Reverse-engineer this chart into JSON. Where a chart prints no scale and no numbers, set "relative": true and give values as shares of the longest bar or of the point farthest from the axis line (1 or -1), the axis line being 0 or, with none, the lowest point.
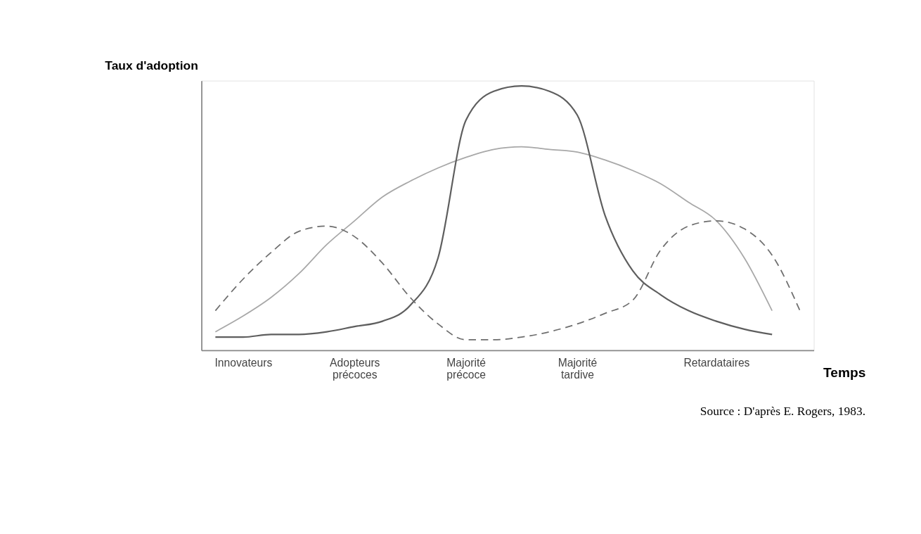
{
  "chart_data": {
    "type": "line",
    "relative": true,
    "ylabel": "Taux d'adoption",
    "xlabel": "Temps",
    "marker": "none",
    "grid": false,
    "categories": [
      null,
      "Innovateurs",
      null,
      null,
      null,
      "Adopteurs précoces",
      null,
      null,
      null,
      "Majorité précoce",
      null,
      null,
      null,
      "Majorité tardive",
      null,
      null,
      null,
      null,
      "Retardataires",
      null,
      null,
      null
    ],
    "series": [
      {
        "color": "#a8a8a8",
        "line_style": "solid",
        "values": [
          0.07,
          0.13,
          0.2,
          0.29,
          0.4,
          0.49,
          0.58,
          0.64,
          0.69,
          0.73,
          0.76,
          0.77,
          0.76,
          0.75,
          0.72,
          0.68,
          0.63,
          0.56,
          0.49,
          0.35,
          0.15,
          null
        ]
      },
      {
        "color": "#5e5e5e",
        "line_style": "solid",
        "values": [
          0.05,
          0.05,
          0.06,
          0.06,
          0.07,
          0.09,
          0.11,
          0.17,
          0.35,
          0.87,
          0.98,
          1,
          0.98,
          0.89,
          0.51,
          0.3,
          0.21,
          0.15,
          0.11,
          0.08,
          0.06,
          null
        ]
      },
      {
        "color": "#6e6e6e",
        "line_style": "dashed",
        "values": [
          0.15,
          0.27,
          0.37,
          0.45,
          0.47,
          0.43,
          0.33,
          0.2,
          0.1,
          0.04,
          0.04,
          0.05,
          0.07,
          0.1,
          0.14,
          0.19,
          0.38,
          0.47,
          0.49,
          0.46,
          0.36,
          0.15
        ]
      }
    ],
    "annotations": [
      "Source : D'après E. Rogers, 1983."
    ]
  }
}
